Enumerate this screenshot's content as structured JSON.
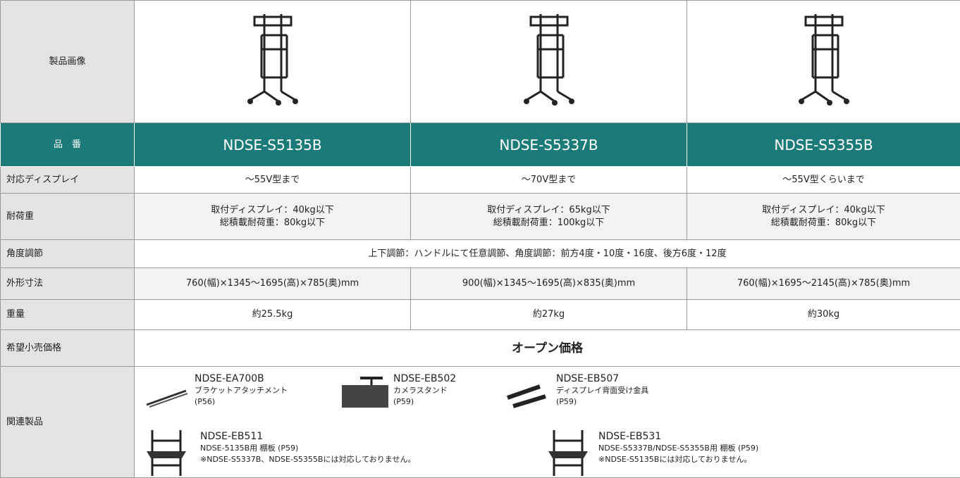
{
  "table": {
    "image_label": "製品画像",
    "model_label": "品　番",
    "models": [
      "NDSE-S5135B",
      "NDSE-S5337B",
      "NDSE-S5355B"
    ],
    "display": {
      "label": "対応ディスプレイ",
      "cells": [
        "～55V型まで",
        "～70V型まで",
        "～55V型くらいまで"
      ]
    },
    "load": {
      "label": "耐荷重",
      "cells": [
        [
          "取付ディスプレイ：40kg以下",
          "総積載耐荷重：80kg以下"
        ],
        [
          "取付ディスプレイ：65kg以下",
          "総積載耐荷重：100kg以下"
        ],
        [
          "取付ディスプレイ：40kg以下",
          "総積載耐荷重：80kg以下"
        ]
      ]
    },
    "angle": {
      "label": "角度調節",
      "cell": "上下調節：ハンドルにて任意調節、角度調節：前方4度・10度・16度、後方6度・12度"
    },
    "size": {
      "label": "外形寸法",
      "cells": [
        "760(幅)×1345～1695(高)×785(奥)mm",
        "900(幅)×1345～1695(高)×835(奥)mm",
        "760(幅)×1695～2145(高)×785(奥)mm"
      ]
    },
    "weight": {
      "label": "重量",
      "cells": [
        "約25.5kg",
        "約27kg",
        "約30kg"
      ]
    },
    "price": {
      "label": "希望小売価格",
      "cell": "オープン価格"
    },
    "related": {
      "label": "関連製品",
      "items": [
        {
          "code": "NDSE-EA700B",
          "lines": [
            "ブラケットアタッチメント",
            "(P56)"
          ]
        },
        {
          "code": "NDSE-EB502",
          "lines": [
            "カメラスタンド",
            "(P59)"
          ]
        },
        {
          "code": "NDSE-EB507",
          "lines": [
            "ディスプレイ背面受け金具",
            "(P59)"
          ]
        },
        {
          "code": "NDSE-EB511",
          "lines": [
            "NDSE-5135B用 棚板 (P59)",
            "※NDSE-S5337B、NDSE-S5355Bには対応しておりません。"
          ]
        },
        {
          "code": "NDSE-EB531",
          "lines": [
            "NDSE-S5337B/NDSE-S5355B用 棚板 (P59)",
            "※NDSE-S5135Bには対応しておりません。"
          ]
        }
      ]
    }
  }
}
